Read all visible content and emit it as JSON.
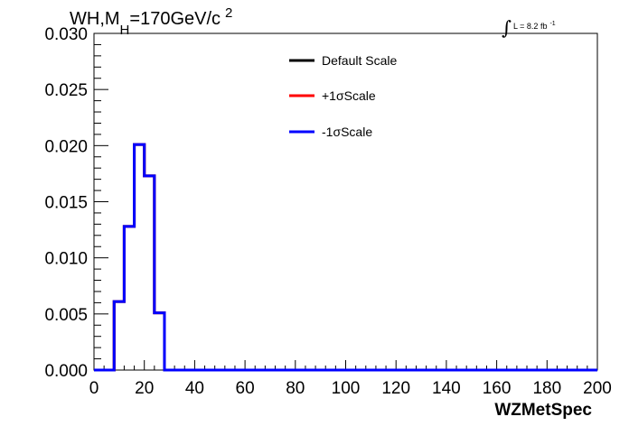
{
  "chart_data": {
    "type": "step",
    "title": {
      "main": "WH,M",
      "subscript": "H",
      "rest": "=170GeV/c",
      "superscript": "2"
    },
    "luminosity": {
      "text": "L = 8.2 fb",
      "superscript": "-1"
    },
    "xlabel": "WZMetSpec",
    "xlim": [
      0,
      200
    ],
    "ylim": [
      0,
      0.03
    ],
    "xticks": [
      0,
      20,
      40,
      60,
      80,
      100,
      120,
      140,
      160,
      180,
      200
    ],
    "yticks": [
      0,
      0.005,
      0.01,
      0.015,
      0.02,
      0.025,
      0.03
    ],
    "xtick_labels": [
      "0",
      "20",
      "40",
      "60",
      "80",
      "100",
      "120",
      "140",
      "160",
      "180",
      "200"
    ],
    "ytick_labels": [
      "0.000",
      "0.005",
      "0.010",
      "0.015",
      "0.020",
      "0.025",
      "0.030"
    ],
    "bin_edges": [
      0,
      4,
      8,
      12,
      16,
      20,
      24,
      28,
      32,
      36,
      40,
      44,
      48,
      52,
      56,
      60,
      64,
      68,
      72,
      76,
      80,
      84,
      88,
      92,
      96,
      100,
      104,
      108,
      112,
      116,
      120,
      124,
      128,
      132,
      136,
      140,
      144,
      148,
      152,
      156,
      160,
      164,
      168,
      172,
      176,
      180,
      184,
      188,
      192,
      196,
      200
    ],
    "series": [
      {
        "name": "Default Scale",
        "color": "#000000",
        "values": [
          0,
          0,
          0.0061,
          0.0128,
          0.0201,
          0.0173,
          0.0051,
          0,
          0,
          0,
          0,
          0,
          0,
          0,
          0,
          0,
          0,
          0,
          0,
          0,
          0,
          0,
          0,
          0,
          0,
          0,
          0,
          0,
          0,
          0,
          0,
          0,
          0,
          0,
          0,
          0,
          0,
          0,
          0,
          0,
          0,
          0,
          0,
          0,
          0,
          0,
          0,
          0,
          0,
          0
        ]
      },
      {
        "name": "+1σScale",
        "color": "#ff0000",
        "values": [
          0,
          0,
          0.0061,
          0.0128,
          0.0201,
          0.0173,
          0.0051,
          0,
          0,
          0,
          0,
          0,
          0,
          0,
          0,
          0,
          0,
          0,
          0,
          0,
          0,
          0,
          0,
          0,
          0,
          0,
          0,
          0,
          0,
          0,
          0,
          0,
          0,
          0,
          0,
          0,
          0,
          0,
          0,
          0,
          0,
          0,
          0,
          0,
          0,
          0,
          0,
          0,
          0,
          0
        ]
      },
      {
        "name": "-1σScale",
        "color": "#0000ff",
        "values": [
          0,
          0,
          0.0061,
          0.0128,
          0.0201,
          0.0173,
          0.0051,
          0,
          0,
          0,
          0,
          0,
          0,
          0,
          0,
          0,
          0,
          0,
          0,
          0,
          0,
          0,
          0,
          0,
          0,
          0,
          0,
          0,
          0,
          0,
          0,
          0,
          0,
          0,
          0,
          0,
          0,
          0,
          0,
          0,
          0,
          0,
          0,
          0,
          0,
          0,
          0,
          0,
          0,
          0
        ]
      }
    ],
    "legend_position": "top-center",
    "grid": false
  }
}
